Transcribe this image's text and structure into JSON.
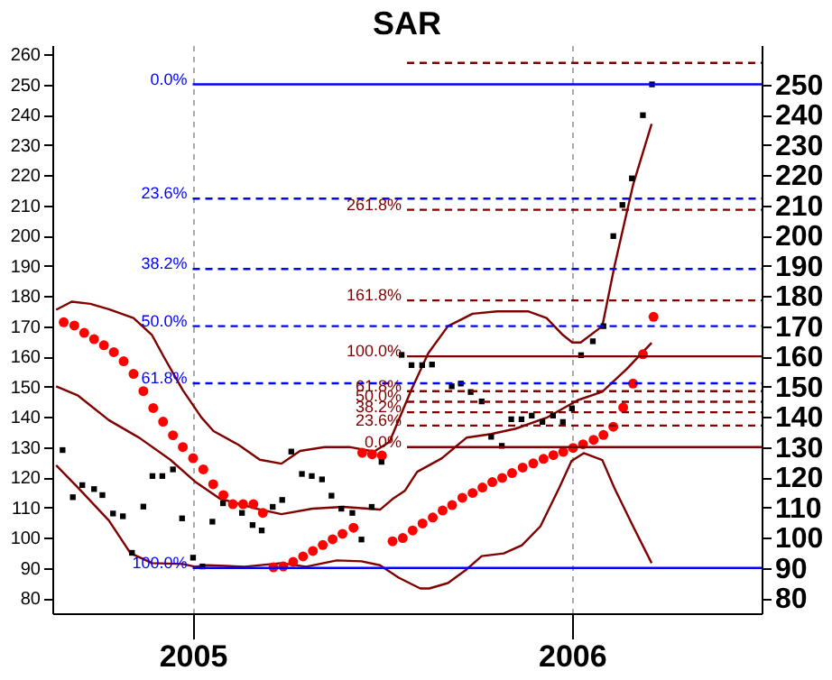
{
  "chart_data": {
    "type": "scatter",
    "title": "SAR",
    "xlim": [
      2004.63,
      2006.5
    ],
    "xticks": [
      {
        "value": 2005,
        "label": "2005"
      },
      {
        "value": 2006,
        "label": "2006"
      }
    ],
    "ylim": [
      75,
      263
    ],
    "yticks": [
      80,
      90,
      100,
      110,
      120,
      130,
      140,
      150,
      160,
      170,
      180,
      190,
      200,
      210,
      220,
      230,
      240,
      250,
      260
    ],
    "y2lim": [
      75,
      263
    ],
    "y2ticks": [
      80,
      90,
      100,
      110,
      120,
      130,
      140,
      150,
      160,
      170,
      180,
      190,
      200,
      210,
      220,
      230,
      240,
      250
    ],
    "grid": "x",
    "series": [
      {
        "type": "line",
        "color": "#800000",
        "marker": "none",
        "line_style": "solid",
        "x": [
          2004.64,
          2004.681,
          2004.73,
          2004.779,
          2004.844,
          2004.893,
          2004.925,
          2004.974,
          2005.023,
          2005.055,
          2005.12,
          2005.177,
          2005.234,
          2005.283,
          2005.348,
          2005.413,
          2005.478,
          2005.519,
          2005.576,
          2005.621,
          2005.673,
          2005.738,
          2005.803,
          2005.884,
          2005.933,
          2005.974,
          2006.001,
          2006.023,
          2006.08,
          2006.112,
          2006.161,
          2006.21
        ],
        "values": [
          175.4,
          178.1,
          177.4,
          175.6,
          172.7,
          167,
          159.6,
          148.8,
          139.8,
          135.3,
          130.8,
          125.8,
          124.5,
          128.7,
          130,
          130,
          128.5,
          131.7,
          148.8,
          161,
          170,
          174.1,
          174.9,
          174.9,
          172.7,
          167.3,
          164.6,
          164.6,
          170,
          189.8,
          216.7,
          236.9
        ]
      },
      {
        "type": "line",
        "color": "#800000",
        "marker": "none",
        "line_style": "solid",
        "x": [
          2004.64,
          2004.698,
          2004.779,
          2004.86,
          2004.941,
          2005.006,
          2005.072,
          2005.169,
          2005.234,
          2005.316,
          2005.397,
          2005.494,
          2005.527,
          2005.56,
          2005.592,
          2005.657,
          2005.722,
          2005.787,
          2005.852,
          2005.933,
          2006.015,
          2006.08,
          2006.145,
          2006.21
        ],
        "values": [
          150.1,
          147,
          138.9,
          133,
          125.8,
          118.6,
          112.9,
          109.6,
          107.8,
          109.6,
          110.2,
          109.3,
          112.8,
          115.6,
          121.8,
          126.3,
          133.1,
          134.3,
          136.1,
          139.7,
          145.5,
          148.3,
          155.9,
          164.5
        ]
      },
      {
        "type": "line",
        "color": "#800000",
        "marker": "none",
        "line_style": "solid",
        "x": [
          2004.64,
          2004.698,
          2004.779,
          2004.836,
          2004.893,
          2004.974,
          2005.006,
          2005.039,
          2005.137,
          2005.234,
          2005.299,
          2005.38,
          2005.445,
          2005.494,
          2005.543,
          2005.6,
          2005.624,
          2005.673,
          2005.722,
          2005.762,
          2005.82,
          2005.868,
          2005.917,
          2005.966,
          2005.999,
          2006.031,
          2006.08,
          2006.112,
          2006.161,
          2006.21
        ],
        "values": [
          124,
          116.5,
          105.7,
          94.9,
          91.6,
          91.3,
          90.4,
          90.9,
          90.4,
          91.6,
          90.4,
          92.5,
          92.2,
          90.9,
          86.8,
          83.2,
          83.2,
          85,
          89.5,
          93.9,
          94.8,
          97.5,
          103.8,
          116.4,
          125.4,
          128,
          125.7,
          116.4,
          103.8,
          91.6
        ]
      },
      {
        "color": "#ff0000",
        "marker": "circle",
        "x": [
          2004.66,
          2004.688,
          2004.714,
          2004.74,
          2004.766,
          2004.792,
          2004.818,
          2004.844,
          2004.87,
          2004.896,
          2004.922,
          2004.948,
          2004.974,
          2005.001,
          2005.028,
          2005.054,
          2005.081,
          2005.106,
          2005.133,
          2005.16,
          2005.185,
          2005.213,
          2005.239,
          2005.265,
          2005.291,
          2005.317,
          2005.343,
          2005.369,
          2005.395,
          2005.424,
          2005.447,
          2005.473,
          2005.499,
          2005.527,
          2005.554,
          2005.58,
          2005.606,
          2005.633,
          2005.659,
          2005.684,
          2005.711,
          2005.738,
          2005.764,
          2005.79,
          2005.816,
          2005.842,
          2005.87,
          2005.898,
          2005.925,
          2005.951,
          2005.977,
          2006.003,
          2006.029,
          2006.057,
          2006.083,
          2006.109,
          2006.135,
          2006.161,
          2006.187,
          2006.215
        ],
        "values": [
          171.3,
          170.2,
          167.8,
          165.7,
          163.7,
          161.4,
          158.4,
          154.2,
          148.5,
          142.9,
          138.4,
          133.9,
          130.0,
          126.3,
          122.6,
          117.7,
          114.1,
          111.1,
          111.1,
          111.1,
          108.2,
          90.2,
          90.5,
          92,
          93.8,
          95.6,
          97.6,
          99.5,
          101.3,
          103.3,
          128.1,
          127.6,
          127.2,
          98.8,
          99.9,
          102.4,
          104.7,
          106.7,
          109,
          110.8,
          113.2,
          114.8,
          116.6,
          118.4,
          119.8,
          121.4,
          123.2,
          124.6,
          126.1,
          127.3,
          128.4,
          129.7,
          130.9,
          132.4,
          134,
          136.7,
          143.1,
          151,
          160.7,
          173.1
        ]
      },
      {
        "color": "#000000",
        "marker": "square",
        "x": [
          2004.657,
          2004.684,
          2004.709,
          2004.74,
          2004.762,
          2004.79,
          2004.816,
          2004.84,
          2004.87,
          2004.894,
          2004.92,
          2004.948,
          2004.972,
          2005.001,
          2005.026,
          2005.052,
          2005.08,
          2005.13,
          2005.158,
          2005.182,
          2005.211,
          2005.236,
          2005.26,
          2005.288,
          2005.314,
          2005.341,
          2005.366,
          2005.392,
          2005.421,
          2005.445,
          2005.472,
          2005.498,
          2005.551,
          2005.577,
          2005.605,
          2005.631,
          2005.683,
          2005.707,
          2005.733,
          2005.762,
          2005.787,
          2005.815,
          2005.84,
          2005.867,
          2005.894,
          2005.922,
          2005.95,
          2005.976,
          2006.0,
          2006.024,
          2006.055,
          2006.083,
          2006.109,
          2006.133,
          2006.158,
          2006.187,
          2006.211
        ],
        "values": [
          129.0,
          113.4,
          117.4,
          116.1,
          114.1,
          108.0,
          107.1,
          95.0,
          110.3,
          120.4,
          120.4,
          122.6,
          106.4,
          93.4,
          90.5,
          105.3,
          111.4,
          108.2,
          104.2,
          102.4,
          110.2,
          112.5,
          128.5,
          121.1,
          120.4,
          119.3,
          113.9,
          109.6,
          108.2,
          99.4,
          110.2,
          125.1,
          160.5,
          157.1,
          157.1,
          157.3,
          150.1,
          151.0,
          148.2,
          145.1,
          133.4,
          130.4,
          139.2,
          139.2,
          140.4,
          138.3,
          140.4,
          138.3,
          142.8,
          160.4,
          165.0,
          170,
          199.8,
          210.1,
          218.9,
          239.8,
          250
        ]
      }
    ],
    "ref_lines": [
      {
        "axis": "y",
        "value": 250,
        "color": "#0000ff",
        "line_style": "solid"
      },
      {
        "axis": "y",
        "value": 212.2,
        "color": "#0000ff",
        "line_style": "dashed"
      },
      {
        "axis": "y",
        "value": 188.9,
        "color": "#0000ff",
        "line_style": "dashed"
      },
      {
        "axis": "y",
        "value": 170,
        "color": "#0000ff",
        "line_style": "dashed"
      },
      {
        "axis": "y",
        "value": 151.1,
        "color": "#0000ff",
        "line_style": "dashed"
      },
      {
        "axis": "y",
        "value": 90,
        "color": "#0000ff",
        "line_style": "solid"
      },
      {
        "axis": "y",
        "value": 130,
        "color": "#800000",
        "line_style": "solid"
      },
      {
        "axis": "y",
        "value": 137.1,
        "color": "#800000",
        "line_style": "dashed"
      },
      {
        "axis": "y",
        "value": 141.5,
        "color": "#800000",
        "line_style": "dashed"
      },
      {
        "axis": "y",
        "value": 145,
        "color": "#800000",
        "line_style": "dashed"
      },
      {
        "axis": "y",
        "value": 148.5,
        "color": "#800000",
        "line_style": "dashed"
      },
      {
        "axis": "y",
        "value": 160,
        "color": "#800000",
        "line_style": "solid"
      },
      {
        "axis": "y",
        "value": 178.5,
        "color": "#800000",
        "line_style": "dashed"
      },
      {
        "axis": "y",
        "value": 208.5,
        "color": "#800000",
        "line_style": "dashed"
      },
      {
        "axis": "y",
        "value": 257.1,
        "color": "#800000",
        "line_style": "dashed"
      }
    ],
    "annotations": [
      "0.0%",
      "23.6%",
      "38.2%",
      "50.0%",
      "61.8%",
      "100.0%",
      "0.0%",
      "23.6%",
      "38.2%",
      "50.0%",
      "61.8%",
      "100.0%",
      "161.8%",
      "261.8%"
    ]
  }
}
